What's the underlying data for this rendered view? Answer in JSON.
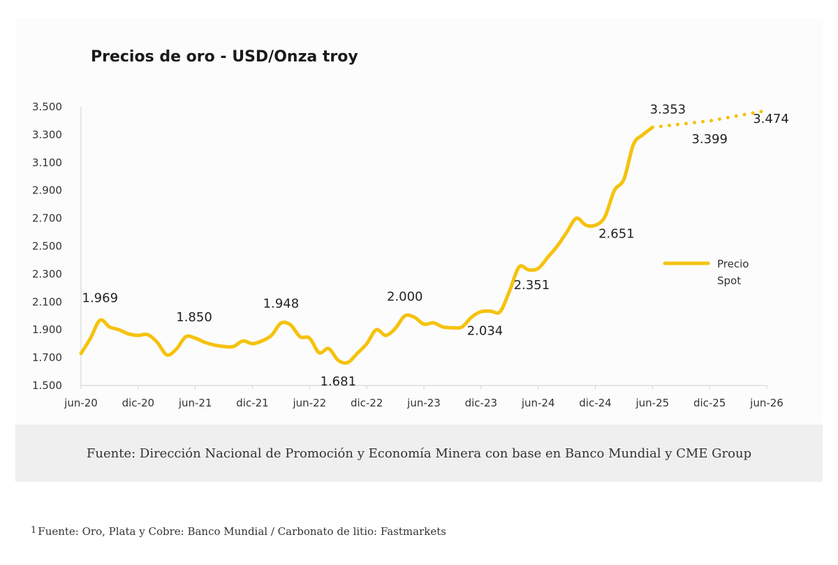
{
  "chart_data": {
    "type": "line",
    "title": "Precios de oro - USD/Onza troy",
    "xlabel": "",
    "ylabel": "",
    "ylim": [
      1500,
      3500
    ],
    "yticks": [
      "1.500",
      "1.700",
      "1.900",
      "2.100",
      "2.300",
      "2.500",
      "2.700",
      "2.900",
      "3.100",
      "3.300",
      "3.500"
    ],
    "xticks": [
      "jun-20",
      "dic-20",
      "jun-21",
      "dic-21",
      "jun-22",
      "dic-22",
      "jun-23",
      "dic-23",
      "jun-24",
      "dic-24",
      "jun-25",
      "dic-25",
      "jun-26"
    ],
    "grid": false,
    "legend_position": "right",
    "colors": {
      "line": "#f5c20e",
      "text": "#222222"
    },
    "series": [
      {
        "name": "Precio Spot",
        "style": "solid",
        "points": [
          [
            "2020-06",
            1730
          ],
          [
            "2020-07",
            1840
          ],
          [
            "2020-08",
            1969
          ],
          [
            "2020-09",
            1920
          ],
          [
            "2020-10",
            1900
          ],
          [
            "2020-11",
            1870
          ],
          [
            "2020-12",
            1860
          ],
          [
            "2021-01",
            1865
          ],
          [
            "2021-02",
            1810
          ],
          [
            "2021-03",
            1720
          ],
          [
            "2021-04",
            1760
          ],
          [
            "2021-05",
            1850
          ],
          [
            "2021-06",
            1840
          ],
          [
            "2021-07",
            1810
          ],
          [
            "2021-08",
            1790
          ],
          [
            "2021-09",
            1780
          ],
          [
            "2021-10",
            1780
          ],
          [
            "2021-11",
            1820
          ],
          [
            "2021-12",
            1800
          ],
          [
            "2022-01",
            1820
          ],
          [
            "2022-02",
            1860
          ],
          [
            "2022-03",
            1948
          ],
          [
            "2022-04",
            1935
          ],
          [
            "2022-05",
            1850
          ],
          [
            "2022-06",
            1840
          ],
          [
            "2022-07",
            1735
          ],
          [
            "2022-08",
            1765
          ],
          [
            "2022-09",
            1681
          ],
          [
            "2022-10",
            1665
          ],
          [
            "2022-11",
            1730
          ],
          [
            "2022-12",
            1800
          ],
          [
            "2023-01",
            1900
          ],
          [
            "2023-02",
            1860
          ],
          [
            "2023-03",
            1910
          ],
          [
            "2023-04",
            2000
          ],
          [
            "2023-05",
            1990
          ],
          [
            "2023-06",
            1940
          ],
          [
            "2023-07",
            1950
          ],
          [
            "2023-08",
            1920
          ],
          [
            "2023-09",
            1915
          ],
          [
            "2023-10",
            1920
          ],
          [
            "2023-11",
            1990
          ],
          [
            "2023-12",
            2030
          ],
          [
            "2024-01",
            2034
          ],
          [
            "2024-02",
            2030
          ],
          [
            "2024-03",
            2180
          ],
          [
            "2024-04",
            2351
          ],
          [
            "2024-05",
            2330
          ],
          [
            "2024-06",
            2340
          ],
          [
            "2024-07",
            2420
          ],
          [
            "2024-08",
            2500
          ],
          [
            "2024-09",
            2600
          ],
          [
            "2024-10",
            2700
          ],
          [
            "2024-11",
            2651
          ],
          [
            "2024-12",
            2650
          ],
          [
            "2025-01",
            2710
          ],
          [
            "2025-02",
            2900
          ],
          [
            "2025-03",
            2980
          ],
          [
            "2025-04",
            3230
          ],
          [
            "2025-05",
            3300
          ],
          [
            "2025-06",
            3353
          ]
        ]
      },
      {
        "name": "",
        "style": "dotted",
        "points": [
          [
            "2025-06",
            3353
          ],
          [
            "2025-12",
            3399
          ],
          [
            "2026-06",
            3474
          ]
        ]
      }
    ],
    "annotations": [
      {
        "text": "1.969",
        "x": "2020-08",
        "y": 1969
      },
      {
        "text": "1.850",
        "x": "2021-05",
        "y": 1850
      },
      {
        "text": "1.948",
        "x": "2022-03",
        "y": 1948
      },
      {
        "text": "1.681",
        "x": "2022-09",
        "y": 1681
      },
      {
        "text": "2.000",
        "x": "2023-04",
        "y": 2000
      },
      {
        "text": "2.034",
        "x": "2024-01",
        "y": 2034
      },
      {
        "text": "2.351",
        "x": "2024-04",
        "y": 2351
      },
      {
        "text": "2.651",
        "x": "2024-11",
        "y": 2651
      },
      {
        "text": "3.353",
        "x": "2025-06",
        "y": 3353
      },
      {
        "text": "3.399",
        "x": "2025-12",
        "y": 3399
      },
      {
        "text": "3.474",
        "x": "2026-06",
        "y": 3474
      }
    ],
    "legend": {
      "line1": "Precio",
      "line2": "Spot"
    }
  },
  "source": "Fuente: Dirección Nacional de Promoción y Economía Minera con base en Banco Mundial y CME Group",
  "footnote": {
    "marker": "1",
    "text": "Fuente: Oro, Plata y Cobre: Banco Mundial / Carbonato de litio: Fastmarkets"
  }
}
